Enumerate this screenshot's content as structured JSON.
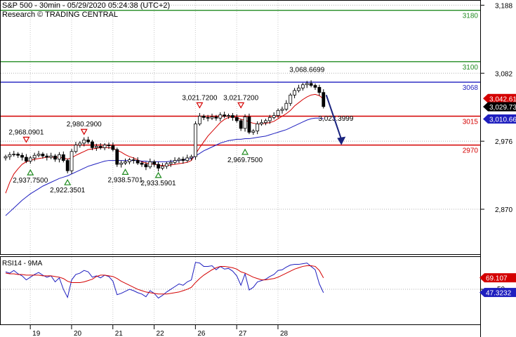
{
  "header": {
    "title": "S&P 500 - 30min - 05/29/2020 05:24:38 (UTC+2)",
    "source": "Research © TRADING CENTRAL"
  },
  "chart_data": [
    {
      "type": "candlestick",
      "title": "S&P 500 - 30min - 05/29/2020 05:24:38 (UTC+2)",
      "ylim": [
        2800,
        3195
      ],
      "y_ticks": [
        "3,188",
        "3,082",
        "2,976",
        "2,870"
      ],
      "y_tick_values": [
        3188,
        3082,
        2976,
        2870
      ],
      "x_ticks": [
        "19",
        "20",
        "21",
        "22",
        "26",
        "27",
        "28"
      ],
      "x_tick_bar_index": [
        7,
        17,
        27,
        37,
        47,
        57,
        67
      ],
      "bar_count": 78,
      "levels": [
        {
          "label": "3180",
          "value": 3180,
          "color": "#228b22"
        },
        {
          "label": "3100",
          "value": 3100,
          "color": "#228b22"
        },
        {
          "label": "3068",
          "value": 3068,
          "color": "#1f1fbf"
        },
        {
          "label": "3015",
          "value": 3015,
          "color": "#d40000"
        },
        {
          "label": "2970",
          "value": 2970,
          "color": "#d40000"
        }
      ],
      "price_badges": [
        {
          "label": "3,042.61",
          "value": 3042.61,
          "color": "#d40000",
          "text_color": "#ffffff"
        },
        {
          "label": "3,029.73",
          "value": 3029.73,
          "color": "#000000",
          "text_color": "#ffffff"
        },
        {
          "label": "3,010.66",
          "value": 3010.66,
          "color": "#1f1fbf",
          "text_color": "#ffffff"
        }
      ],
      "annotations": [
        {
          "label": "2,968.0901",
          "value": 2968.09,
          "bar": 5,
          "marker": "down"
        },
        {
          "label": "2,937.7500",
          "value": 2937.75,
          "bar": 6,
          "marker": "up"
        },
        {
          "label": "2,922.3501",
          "value": 2922.35,
          "bar": 15,
          "marker": "up"
        },
        {
          "label": "2,980.2900",
          "value": 2980.29,
          "bar": 19,
          "marker": "down"
        },
        {
          "label": "2,938.5701",
          "value": 2938.57,
          "bar": 29,
          "marker": "up"
        },
        {
          "label": "2,933.5901",
          "value": 2933.59,
          "bar": 37,
          "marker": "up"
        },
        {
          "label": "3,021.7200",
          "value": 3021.72,
          "bar": 47,
          "marker": "down"
        },
        {
          "label": "3,021.7200",
          "value": 3021.72,
          "bar": 57,
          "marker": "down"
        },
        {
          "label": "2,969.7500",
          "value": 2969.75,
          "bar": 58,
          "marker": "up"
        },
        {
          "label": "3,068.6699",
          "value": 3068.67,
          "bar": 73,
          "marker": "none"
        },
        {
          "label": "3,023.3999",
          "value": 3023.4,
          "bar": 80,
          "marker": "none"
        }
      ],
      "forecast_arrow": {
        "from": [
          77,
          3048
        ],
        "to": [
          81,
          2970
        ],
        "color": "#1a237e"
      },
      "close": [
        2952,
        2955,
        2956,
        2954,
        2951,
        2945,
        2950,
        2954,
        2956,
        2953,
        2951,
        2953,
        2948,
        2955,
        2946,
        2930,
        2960,
        2970,
        2973,
        2978,
        2975,
        2966,
        2968,
        2966,
        2970,
        2969,
        2963,
        2940,
        2942,
        2944,
        2947,
        2946,
        2942,
        2940,
        2936,
        2944,
        2940,
        2934,
        2937,
        2941,
        2943,
        2946,
        2948,
        2946,
        2950,
        2952,
        3003,
        3015,
        3013,
        3012,
        3014,
        3012,
        3017,
        3015,
        3016,
        3013,
        3008,
        2996,
        3014,
        2990,
        2992,
        3003,
        3005,
        3008,
        3013,
        3016,
        3024,
        3026,
        3035,
        3048,
        3055,
        3059,
        3064,
        3066,
        3063,
        3060,
        3052,
        3030
      ],
      "series": [
        {
          "name": "9MA",
          "color": "#d40000",
          "values": [
            2895,
            2912,
            2925,
            2933,
            2940,
            2944,
            2946,
            2948,
            2949,
            2950,
            2951,
            2951,
            2951,
            2951,
            2950,
            2948,
            2950,
            2954,
            2957,
            2960,
            2963,
            2964,
            2965,
            2966,
            2966,
            2966,
            2965,
            2962,
            2959,
            2955,
            2952,
            2950,
            2947,
            2944,
            2942,
            2941,
            2940,
            2939,
            2938,
            2938,
            2939,
            2940,
            2941,
            2942,
            2943,
            2946,
            2956,
            2966,
            2975,
            2984,
            2991,
            2998,
            3005,
            3010,
            3013,
            3014,
            3013,
            3010,
            3009,
            3006,
            3004,
            3003,
            3003,
            3004,
            3005,
            3007,
            3011,
            3015,
            3019,
            3024,
            3031,
            3036,
            3041,
            3045,
            3048,
            3049,
            3047,
            3042
          ]
        },
        {
          "name": "",
          "color": "#1f1fbf",
          "values": [
            2860,
            2866,
            2872,
            2878,
            2884,
            2889,
            2894,
            2898,
            2902,
            2906,
            2909,
            2912,
            2915,
            2918,
            2920,
            2922,
            2925,
            2928,
            2931,
            2934,
            2937,
            2939,
            2941,
            2943,
            2945,
            2946,
            2946,
            2946,
            2946,
            2946,
            2946,
            2946,
            2946,
            2945,
            2945,
            2944,
            2944,
            2944,
            2944,
            2944,
            2945,
            2945,
            2946,
            2947,
            2948,
            2949,
            2953,
            2957,
            2961,
            2964,
            2967,
            2970,
            2973,
            2975,
            2977,
            2978,
            2979,
            2979,
            2980,
            2980,
            2981,
            2982,
            2983,
            2984,
            2986,
            2988,
            2990,
            2992,
            2994,
            2997,
            3000,
            3003,
            3006,
            3009,
            3011,
            3012,
            3012,
            3011
          ]
        }
      ]
    },
    {
      "type": "line",
      "title": "RSI14 - 9MA",
      "ylim": [
        0,
        100
      ],
      "y_ticks": [
        "50"
      ],
      "value_badges": [
        {
          "label": "69.107",
          "value": 69.107,
          "color": "#d40000",
          "text_color": "#ffffff"
        },
        {
          "label": "47.3232",
          "value": 47.3232,
          "color": "#1f1fbf",
          "text_color": "#ffffff"
        }
      ],
      "series": [
        {
          "name": "RSI14",
          "color": "#1f1fbf",
          "values": [
            78,
            76,
            80,
            75,
            72,
            66,
            70,
            74,
            77,
            73,
            70,
            72,
            63,
            69,
            52,
            40,
            66,
            74,
            76,
            80,
            78,
            70,
            72,
            69,
            73,
            71,
            64,
            44,
            46,
            49,
            52,
            50,
            47,
            45,
            41,
            50,
            46,
            39,
            43,
            48,
            52,
            56,
            60,
            58,
            63,
            66,
            92,
            91,
            86,
            86,
            87,
            81,
            86,
            82,
            83,
            79,
            72,
            58,
            75,
            51,
            55,
            63,
            65,
            67,
            71,
            74,
            80,
            81,
            85,
            88,
            89,
            89,
            90,
            91,
            86,
            81,
            60,
            47
          ]
        },
        {
          "name": "9MA",
          "color": "#d40000",
          "values": [
            76,
            75,
            75,
            74,
            74,
            73,
            73,
            73,
            73,
            72,
            72,
            72,
            71,
            70,
            68,
            64,
            62,
            62,
            62,
            63,
            65,
            67,
            71,
            73,
            73,
            72,
            71,
            68,
            64,
            61,
            58,
            55,
            52,
            50,
            48,
            47,
            46,
            45,
            45,
            45,
            46,
            47,
            48,
            50,
            52,
            55,
            62,
            68,
            73,
            77,
            81,
            84,
            86,
            86,
            85,
            84,
            82,
            78,
            76,
            73,
            70,
            68,
            66,
            66,
            67,
            68,
            70,
            73,
            76,
            79,
            82,
            84,
            86,
            87,
            87,
            86,
            80,
            69
          ]
        }
      ]
    }
  ]
}
